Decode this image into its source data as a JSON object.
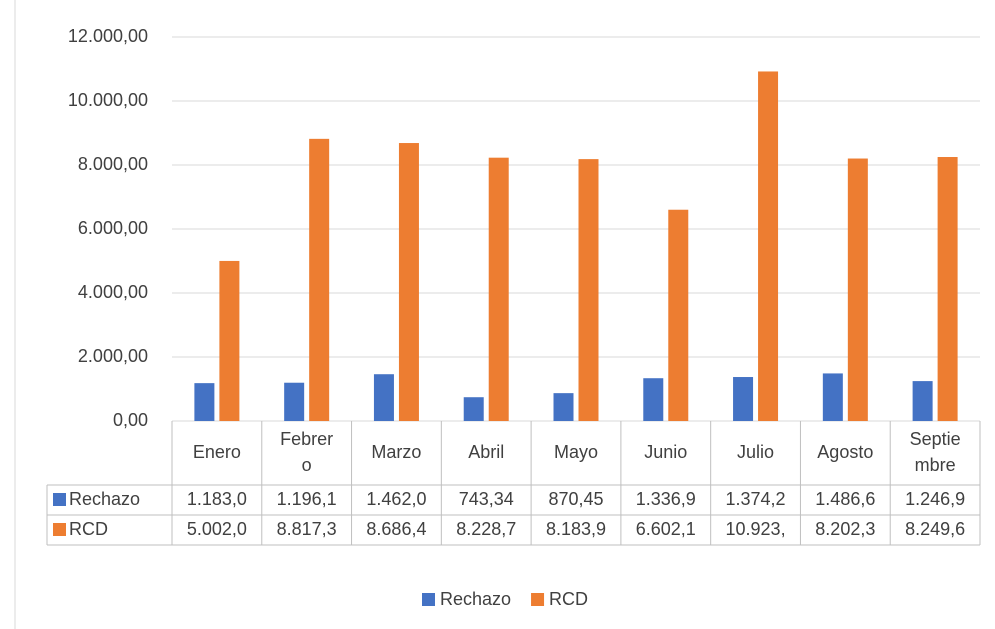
{
  "chart_data": {
    "type": "bar",
    "categories": [
      "Enero",
      "Febrero",
      "Marzo",
      "Abril",
      "Mayo",
      "Junio",
      "Julio",
      "Agosto",
      "Septiembre"
    ],
    "series": [
      {
        "name": "Rechazo",
        "color": "#4472c4",
        "values": [
          1183.0,
          1196.1,
          1462.0,
          743.34,
          870.45,
          1336.9,
          1374.2,
          1486.6,
          1246.9
        ],
        "value_labels": [
          "1.183,0",
          "1.196,1",
          "1.462,0",
          "743,34",
          "870,45",
          "1.336,9",
          "1.374,2",
          "1.486,6",
          "1.246,9"
        ]
      },
      {
        "name": "RCD",
        "color": "#ed7d31",
        "values": [
          5002.0,
          8817.3,
          8686.4,
          8228.7,
          8183.9,
          6602.1,
          10923,
          8202.3,
          8249.6
        ],
        "value_labels": [
          "5.002,0",
          "8.817,3",
          "8.686,4",
          "8.228,7",
          "8.183,9",
          "6.602,1",
          "10.923,",
          "8.202,3",
          "8.249,6"
        ]
      }
    ],
    "ylim": [
      0,
      12000
    ],
    "yticks": [
      {
        "value": 0,
        "label": "0,00"
      },
      {
        "value": 2000,
        "label": "2.000,00"
      },
      {
        "value": 4000,
        "label": "4.000,00"
      },
      {
        "value": 6000,
        "label": "6.000,00"
      },
      {
        "value": 8000,
        "label": "8.000,00"
      },
      {
        "value": 10000,
        "label": "10.000,00"
      },
      {
        "value": 12000,
        "label": "12.000,00"
      }
    ],
    "grid": true,
    "legend": "bottom"
  }
}
